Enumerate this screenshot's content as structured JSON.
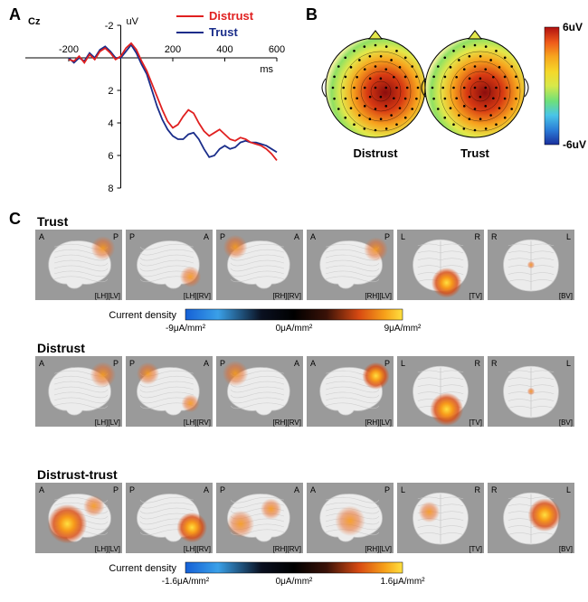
{
  "panelA": {
    "label": "A",
    "channel": "Cz",
    "yUnit": "uV",
    "xUnit": "ms",
    "xlim": [
      -200,
      600
    ],
    "ylim_top": -2,
    "ylim_bottom": 8,
    "xticks": [
      -200,
      0,
      200,
      400,
      600
    ],
    "yticks": [
      -2,
      0,
      2,
      4,
      6,
      8
    ],
    "legend": [
      {
        "label": "Distrust",
        "color": "#e02020"
      },
      {
        "label": "Trust",
        "color": "#1a2d8a"
      }
    ],
    "series": {
      "distrust": {
        "color": "#e02020",
        "width": 1.8,
        "points": [
          [
            -200,
            0.1
          ],
          [
            -180,
            0.2
          ],
          [
            -160,
            -0.1
          ],
          [
            -140,
            0.3
          ],
          [
            -120,
            -0.2
          ],
          [
            -100,
            0.1
          ],
          [
            -80,
            -0.4
          ],
          [
            -60,
            -0.6
          ],
          [
            -40,
            -0.3
          ],
          [
            -20,
            0.1
          ],
          [
            0,
            -0.1
          ],
          [
            20,
            -0.6
          ],
          [
            40,
            -0.9
          ],
          [
            60,
            -0.5
          ],
          [
            80,
            0.2
          ],
          [
            100,
            0.8
          ],
          [
            120,
            1.6
          ],
          [
            140,
            2.4
          ],
          [
            160,
            3.2
          ],
          [
            180,
            3.9
          ],
          [
            200,
            4.3
          ],
          [
            220,
            4.1
          ],
          [
            240,
            3.6
          ],
          [
            260,
            3.2
          ],
          [
            280,
            3.4
          ],
          [
            300,
            4.0
          ],
          [
            320,
            4.5
          ],
          [
            340,
            4.8
          ],
          [
            360,
            4.6
          ],
          [
            380,
            4.4
          ],
          [
            400,
            4.7
          ],
          [
            420,
            5.0
          ],
          [
            440,
            5.1
          ],
          [
            460,
            4.9
          ],
          [
            480,
            5.0
          ],
          [
            500,
            5.2
          ],
          [
            520,
            5.3
          ],
          [
            540,
            5.4
          ],
          [
            560,
            5.6
          ],
          [
            580,
            5.9
          ],
          [
            600,
            6.3
          ]
        ]
      },
      "trust": {
        "color": "#1a2d8a",
        "width": 1.8,
        "points": [
          [
            -200,
            0.0
          ],
          [
            -180,
            0.3
          ],
          [
            -160,
            0.0
          ],
          [
            -140,
            0.2
          ],
          [
            -120,
            -0.3
          ],
          [
            -100,
            0.0
          ],
          [
            -80,
            -0.5
          ],
          [
            -60,
            -0.7
          ],
          [
            -40,
            -0.4
          ],
          [
            -20,
            0.0
          ],
          [
            0,
            0.0
          ],
          [
            20,
            -0.4
          ],
          [
            40,
            -0.8
          ],
          [
            60,
            -0.3
          ],
          [
            80,
            0.4
          ],
          [
            100,
            1.0
          ],
          [
            120,
            2.0
          ],
          [
            140,
            3.0
          ],
          [
            160,
            3.8
          ],
          [
            180,
            4.4
          ],
          [
            200,
            4.8
          ],
          [
            220,
            5.0
          ],
          [
            240,
            5.0
          ],
          [
            260,
            4.7
          ],
          [
            280,
            4.6
          ],
          [
            300,
            5.0
          ],
          [
            320,
            5.6
          ],
          [
            340,
            6.1
          ],
          [
            360,
            6.0
          ],
          [
            380,
            5.6
          ],
          [
            400,
            5.4
          ],
          [
            420,
            5.6
          ],
          [
            440,
            5.5
          ],
          [
            460,
            5.2
          ],
          [
            480,
            5.1
          ],
          [
            500,
            5.2
          ],
          [
            520,
            5.2
          ],
          [
            540,
            5.3
          ],
          [
            560,
            5.4
          ],
          [
            580,
            5.6
          ],
          [
            600,
            5.8
          ]
        ]
      }
    }
  },
  "panelB": {
    "label": "B",
    "colorbar": {
      "max": "6uV",
      "min": "-6uV"
    },
    "heads": [
      {
        "label": "Distrust"
      },
      {
        "label": "Trust"
      }
    ],
    "cmapStops": [
      {
        "o": 0,
        "c": "#1a2f9c"
      },
      {
        "o": 0.12,
        "c": "#2a7ad6"
      },
      {
        "o": 0.25,
        "c": "#49c5e8"
      },
      {
        "o": 0.37,
        "c": "#6ee07a"
      },
      {
        "o": 0.5,
        "c": "#d7e84a"
      },
      {
        "o": 0.62,
        "c": "#f5d82a"
      },
      {
        "o": 0.75,
        "c": "#f7a51e"
      },
      {
        "o": 0.87,
        "c": "#ef5a1a"
      },
      {
        "o": 1,
        "c": "#b01010"
      }
    ]
  },
  "panelC": {
    "label": "C",
    "rows": [
      {
        "title": "Trust"
      },
      {
        "title": "Distrust"
      },
      {
        "title": "Distrust-trust"
      }
    ],
    "views": [
      {
        "tl": "A",
        "tr": "P",
        "tag": "[LH][LV]"
      },
      {
        "tl": "P",
        "tr": "A",
        "tag": "[LH][RV]"
      },
      {
        "tl": "P",
        "tr": "A",
        "tag": "[RH][RV]"
      },
      {
        "tl": "A",
        "tr": "P",
        "tag": "[RH][LV]"
      },
      {
        "tl": "L",
        "tr": "R",
        "tag": "[TV]"
      },
      {
        "tl": "R",
        "tr": "L",
        "tag": "[BV]"
      }
    ],
    "cbar1": {
      "label": "Current density",
      "ticks": [
        "-9μA/mm²",
        "0μA/mm²",
        "9μA/mm²"
      ]
    },
    "cbar2": {
      "label": "Current density",
      "ticks": [
        "-1.6μA/mm²",
        "0μA/mm²",
        "1.6μA/mm²"
      ]
    },
    "densityStops": [
      {
        "o": 0,
        "c": "#1560d6"
      },
      {
        "o": 0.15,
        "c": "#3aa0e8"
      },
      {
        "o": 0.35,
        "c": "#0a1020"
      },
      {
        "o": 0.5,
        "c": "#000000"
      },
      {
        "o": 0.65,
        "c": "#3a1208"
      },
      {
        "o": 0.8,
        "c": "#d84a12"
      },
      {
        "o": 0.92,
        "c": "#f7a21a"
      },
      {
        "o": 1,
        "c": "#ffe040"
      }
    ],
    "brainBase": "#ececec",
    "brainStroke": "#c9c9c9",
    "panelBg": "#9a9a9a"
  }
}
